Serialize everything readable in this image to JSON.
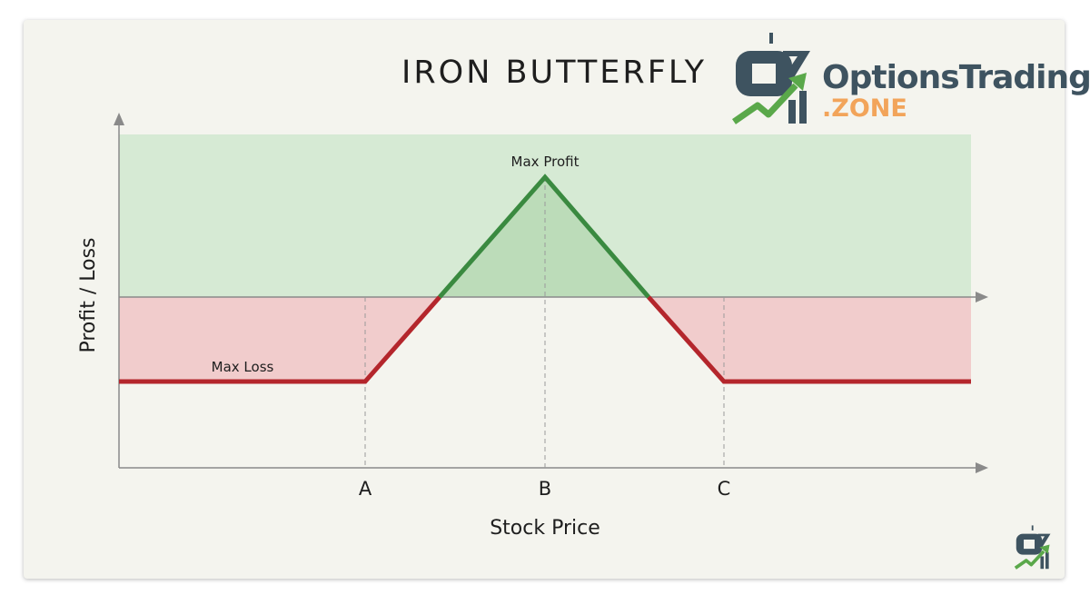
{
  "chart_data": {
    "type": "line",
    "title": "IRON BUTTERFLY",
    "xlabel": "Stock Price",
    "ylabel": "Profit / Loss",
    "x_ticks": [
      "A",
      "B",
      "C"
    ],
    "series": [
      {
        "points": [
          {
            "x": "start",
            "y": "Max Loss"
          },
          {
            "x": "A",
            "y": "Max Loss"
          },
          {
            "x": "B",
            "y": "Max Profit"
          },
          {
            "x": "C",
            "y": "Max Loss"
          },
          {
            "x": "end",
            "y": "Max Loss"
          }
        ]
      }
    ],
    "annotations": {
      "max_profit": "Max Profit",
      "max_loss": "Max Loss"
    },
    "regions": {
      "profit_color": "#d6ead4",
      "loss_color": "#f1cccc"
    },
    "line_colors": {
      "profit": "#3a8a40",
      "loss": "#b4262c"
    }
  },
  "brand": {
    "name": "OptionsTrading",
    "suffix": ".ZONE",
    "name_color": "#3e5360",
    "suffix_color": "#f2a45a"
  }
}
